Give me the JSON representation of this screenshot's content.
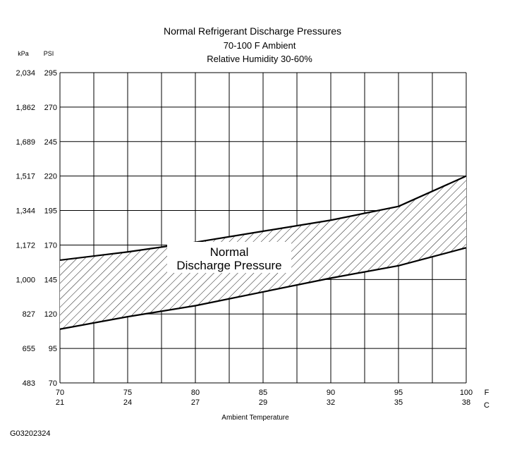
{
  "chart_data": {
    "type": "area",
    "title": "Normal  Refrigerant  Discharge  Pressures",
    "subtitle_1": "70-100 F Ambient",
    "subtitle_2": "Relative Humidity 30-60%",
    "xlabel": "Ambient Temperature",
    "x_unit_f": "F",
    "x_unit_c": "C",
    "x_ticks_f": [
      "70",
      "75",
      "80",
      "85",
      "90",
      "95",
      "100"
    ],
    "x_ticks_c": [
      "21",
      "24",
      "27",
      "29",
      "32",
      "35",
      "38"
    ],
    "xlim": [
      70,
      100
    ],
    "y_unit_kpa": "kPa",
    "y_unit_psi": "PSI",
    "y_ticks_psi": [
      "295",
      "270",
      "245",
      "220",
      "195",
      "170",
      "145",
      "120",
      "95",
      "70"
    ],
    "y_ticks_kpa": [
      "2,034",
      "1,862",
      "1,689",
      "1,517",
      "1,344",
      "1,172",
      "1,000",
      "827",
      "655",
      "483"
    ],
    "ylim": [
      70,
      295
    ],
    "grid": true,
    "series": [
      {
        "name": "",
        "x": [
          70,
          75,
          80,
          85,
          90,
          95,
          100
        ],
        "values": [
          159,
          165,
          172,
          180,
          188,
          198,
          220
        ]
      },
      {
        "name": "",
        "x": [
          70,
          75,
          80,
          85,
          90,
          95,
          100
        ],
        "values": [
          109,
          118,
          126,
          136,
          146,
          155,
          168
        ]
      }
    ],
    "region_label": [
      "Normal",
      "Discharge Pressure"
    ],
    "region_label_at": {
      "x": 82.5,
      "y": 160
    }
  },
  "figure_id": "G03202324"
}
